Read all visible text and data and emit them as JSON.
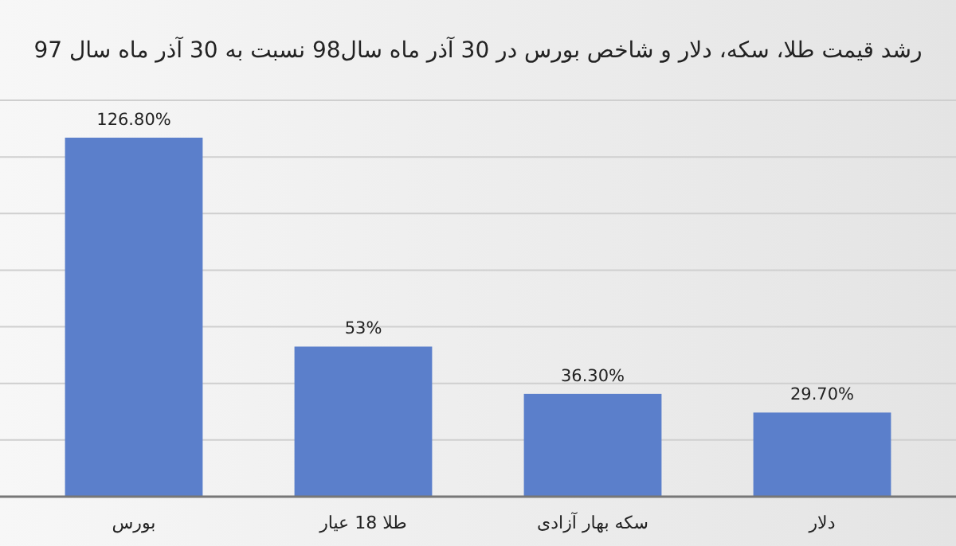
{
  "chart_data": {
    "type": "bar",
    "title": "رشد قیمت طلا، سکه، دلار و شاخص بورس در 30 آذر ماه سال98 نسبت به 30 آذر ماه سال 97",
    "categories": [
      "بورس",
      "طلا 18 عیار",
      "سکه بهار آزادی",
      "دلار"
    ],
    "values": [
      126.8,
      53,
      36.3,
      29.7
    ],
    "value_labels": [
      "126.80%",
      "53%",
      "36.30%",
      "29.70%"
    ],
    "color": "#5b7fcb",
    "ylim": [
      0,
      140
    ],
    "yticks": [
      {
        "value": 0,
        "label": null
      },
      {
        "value": 20,
        "label": null
      },
      {
        "value": 40,
        "label": null
      },
      {
        "value": 60,
        "label": null
      },
      {
        "value": 80,
        "label": null
      },
      {
        "value": 100,
        "label": null
      },
      {
        "value": 120,
        "label": null
      },
      {
        "value": 140,
        "label": null
      }
    ],
    "grid": "y",
    "tick_labels": "x"
  }
}
